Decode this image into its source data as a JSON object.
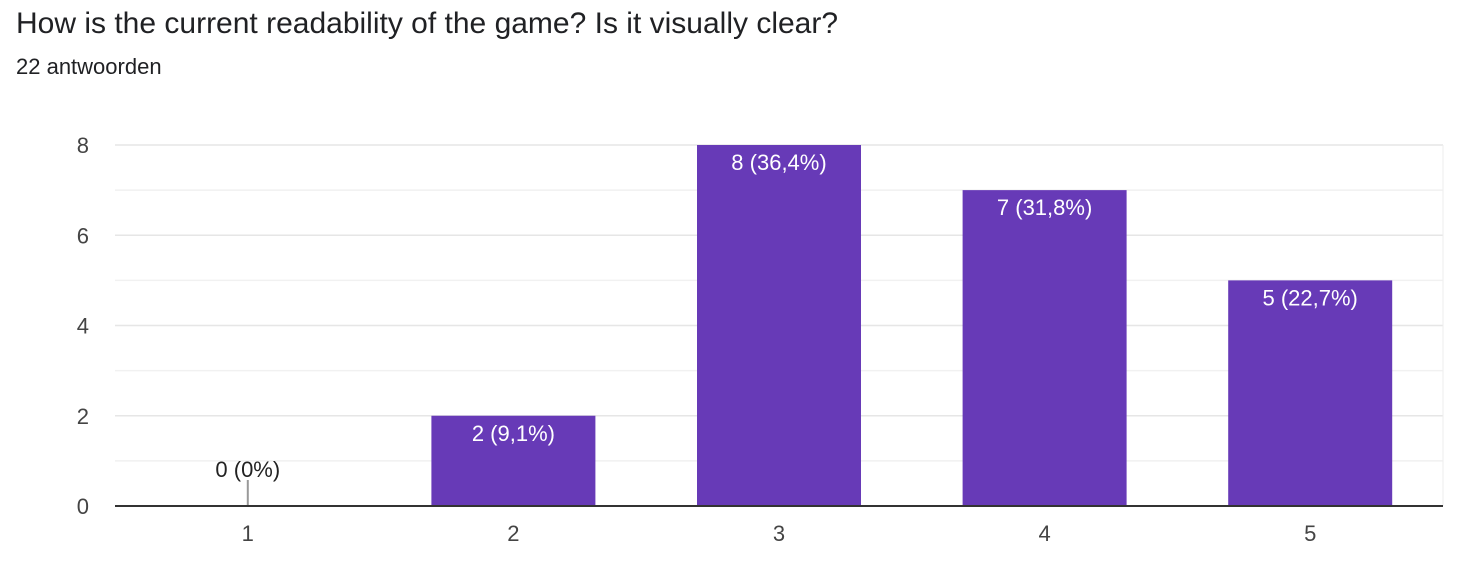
{
  "question": {
    "title": "How is the current readability of the game? Is it visually clear?",
    "responses": "22 antwoorden"
  },
  "colors": {
    "bar": "#673ab7",
    "grid": "#e8e8e8",
    "axis": "#333333",
    "text": "#202124",
    "bar_label": "#ffffff"
  },
  "chart_data": {
    "type": "bar",
    "title": "How is the current readability of the game? Is it visually clear?",
    "xlabel": "",
    "ylabel": "",
    "categories": [
      "1",
      "2",
      "3",
      "4",
      "5"
    ],
    "values": [
      0,
      2,
      8,
      7,
      5
    ],
    "data_labels": [
      "0 (0%)",
      "2 (9,1%)",
      "8 (36,4%)",
      "7 (31,8%)",
      "5 (22,7%)"
    ],
    "ylim": [
      0,
      8
    ],
    "yticks": [
      0,
      2,
      4,
      6,
      8
    ],
    "grid": true,
    "legend": "none"
  }
}
